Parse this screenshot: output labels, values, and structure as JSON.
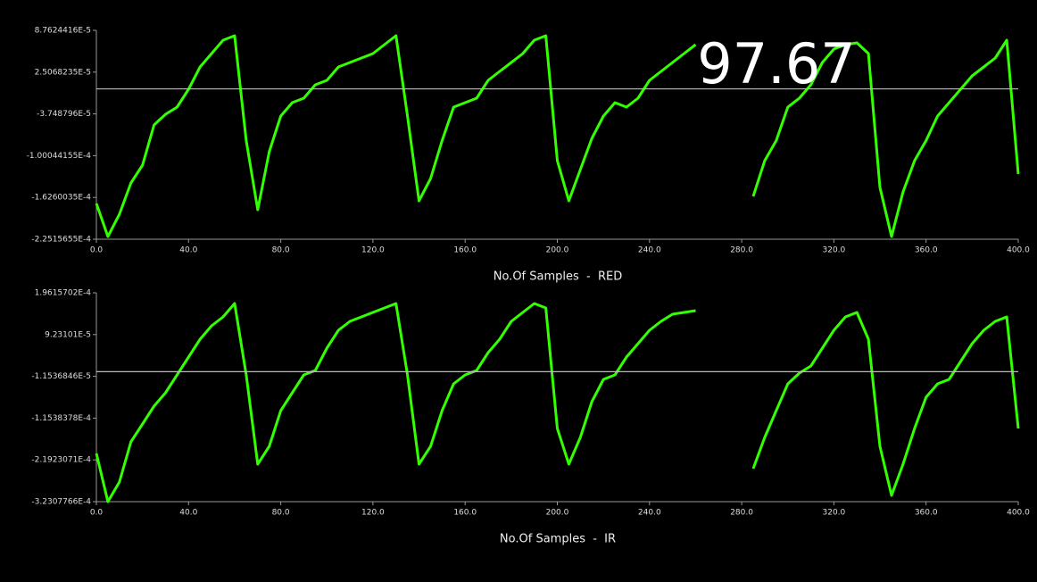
{
  "readout": 97.67,
  "chart_data": [
    {
      "type": "line",
      "xlabel": "No.Of Samples  -  RED",
      "x": [
        0,
        5,
        10,
        15,
        20,
        25,
        30,
        35,
        40,
        45,
        50,
        55,
        60,
        65,
        70,
        75,
        80,
        85,
        90,
        95,
        100,
        105,
        110,
        115,
        120,
        125,
        130,
        135,
        140,
        145,
        150,
        155,
        160,
        165,
        170,
        175,
        180,
        185,
        190,
        195,
        200,
        205,
        210,
        215,
        220,
        225,
        230,
        235,
        240,
        245,
        250,
        255,
        260,
        265,
        270,
        275,
        280,
        285,
        290,
        295,
        300,
        305,
        310,
        315,
        320,
        325,
        330,
        335,
        340,
        345,
        350,
        355,
        360,
        365,
        370,
        375,
        380,
        385,
        390,
        395,
        400
      ],
      "series": [
        {
          "color": "#33ff00",
          "values": [
            -0.0001717,
            -0.0002211,
            -0.0001877,
            -0.0001409,
            -0.0001142,
            -5.41e-05,
            -3.8e-05,
            -2.73e-05,
            -6e-07,
            3.28e-05,
            5.29e-05,
            7.29e-05,
            7.96e-05,
            -7.74e-05,
            -0.000181,
            -9.42e-05,
            -4.07e-05,
            -2.06e-05,
            -1.4e-05,
            6.1e-06,
            1.28e-05,
            3.28e-05,
            3.95e-05,
            4.62e-05,
            5.29e-05,
            6.62e-05,
            7.96e-05,
            -4.07e-05,
            -0.0001677,
            -0.0001343,
            -7.74e-05,
            -2.73e-05,
            -2.06e-05,
            -1.4e-05,
            1.28e-05,
            2.61e-05,
            3.95e-05,
            5.29e-05,
            7.29e-05,
            7.96e-05,
            -0.0001075,
            -0.0001677,
            -0.0001209,
            -7.41e-05,
            -4.07e-05,
            -2.06e-05,
            -2.73e-05,
            -1.4e-05,
            1.28e-05,
            2.61e-05,
            3.95e-05,
            5.29e-05,
            6.62e-05,
            null,
            null,
            null,
            null,
            -0.000161,
            -0.0001075,
            -7.74e-05,
            -2.73e-05,
            -1.4e-05,
            6.1e-06,
            3.95e-05,
            5.96e-05,
            6.62e-05,
            6.89e-05,
            5.29e-05,
            -0.0001476,
            -0.0002211,
            -0.0001543,
            -0.0001075,
            -7.74e-05,
            -4.07e-05,
            -2.06e-05,
            -6e-07,
            1.95e-05,
            3.28e-05,
            4.62e-05,
            7.29e-05,
            -0.0001276
          ]
        }
      ],
      "hline": 0,
      "xlim": [
        0,
        400
      ],
      "xticks": [
        {
          "value": 0,
          "label": "0.0"
        },
        {
          "value": 40,
          "label": "40.0"
        },
        {
          "value": 80,
          "label": "80.0"
        },
        {
          "value": 120,
          "label": "120.0"
        },
        {
          "value": 160,
          "label": "160.0"
        },
        {
          "value": 200,
          "label": "200.0"
        },
        {
          "value": 240,
          "label": "240.0"
        },
        {
          "value": 280,
          "label": "280.0"
        },
        {
          "value": 320,
          "label": "320.0"
        },
        {
          "value": 360,
          "label": "360.0"
        },
        {
          "value": 400,
          "label": "400.0"
        }
      ],
      "ylim": [
        -0.00022515655,
        8.7624416e-05
      ],
      "yticks": [
        {
          "value": 8.7624416e-05,
          "label": "8.7624416E-5"
        },
        {
          "value": 2.5068235e-05,
          "label": "2.5068235E-5"
        },
        {
          "value": -3.748796e-05,
          "label": "-3.748796E-5"
        },
        {
          "value": -0.000100044155,
          "label": "-1.00044155E-4"
        },
        {
          "value": -0.00016260035,
          "label": "-1.6260035E-4"
        },
        {
          "value": -0.00022515655,
          "label": "-2.2515655E-4"
        }
      ]
    },
    {
      "type": "line",
      "xlabel": "No.Of Samples  -  IR",
      "x": [
        0,
        5,
        10,
        15,
        20,
        25,
        30,
        35,
        40,
        45,
        50,
        55,
        60,
        65,
        70,
        75,
        80,
        85,
        90,
        95,
        100,
        105,
        110,
        115,
        120,
        125,
        130,
        135,
        140,
        145,
        150,
        155,
        160,
        165,
        170,
        175,
        180,
        185,
        190,
        195,
        200,
        205,
        210,
        215,
        220,
        225,
        230,
        235,
        240,
        245,
        250,
        255,
        260,
        265,
        270,
        275,
        280,
        285,
        290,
        295,
        300,
        305,
        310,
        315,
        320,
        325,
        330,
        335,
        340,
        345,
        350,
        355,
        360,
        365,
        370,
        375,
        380,
        385,
        390,
        395,
        400
      ],
      "series": [
        {
          "color": "#33ff00",
          "values": [
            -0.0002032,
            -0.0003231,
            -0.0002743,
            -0.0001744,
            -0.00013,
            -8.56e-05,
            -5.24e-05,
            -8e-06,
            3.64e-05,
            8.08e-05,
            0.0001141,
            0.0001363,
            0.0001695,
            -8e-06,
            -0.0002299,
            -0.0001855,
            -9.67e-05,
            -5.24e-05,
            -8e-06,
            3.1e-06,
            5.86e-05,
            0.000103,
            0.0001252,
            0.0001363,
            0.0001474,
            0.0001584,
            0.0001695,
            -8e-06,
            -0.0002299,
            -0.0001855,
            -9.67e-05,
            -3.02e-05,
            -8e-06,
            3.1e-06,
            4.75e-05,
            8.08e-05,
            0.0001252,
            0.0001474,
            0.0001695,
            0.0001584,
            -0.0001411,
            -0.0002299,
            -0.0001633,
            -7.45e-05,
            -1.91e-05,
            -8e-06,
            3.64e-05,
            6.97e-05,
            0.000103,
            0.0001252,
            0.0001429,
            0.0001474,
            0.0001518,
            null,
            null,
            null,
            null,
            -0.000241,
            -0.0001633,
            -9.67e-05,
            -3.02e-05,
            -3.5e-06,
            1.42e-05,
            5.86e-05,
            0.000103,
            0.0001363,
            0.0001474,
            8.08e-05,
            -0.0001855,
            -0.0003075,
            -0.0002299,
            -0.0001411,
            -6.35e-05,
            -3.02e-05,
            -1.91e-05,
            2.53e-05,
            6.97e-05,
            0.000103,
            0.0001252,
            0.0001363,
            -0.0001411
          ]
        }
      ],
      "hline": 0,
      "xlim": [
        0,
        400
      ],
      "xticks": [
        {
          "value": 0,
          "label": "0.0"
        },
        {
          "value": 40,
          "label": "40.0"
        },
        {
          "value": 80,
          "label": "80.0"
        },
        {
          "value": 120,
          "label": "120.0"
        },
        {
          "value": 160,
          "label": "160.0"
        },
        {
          "value": 200,
          "label": "200.0"
        },
        {
          "value": 240,
          "label": "240.0"
        },
        {
          "value": 280,
          "label": "280.0"
        },
        {
          "value": 320,
          "label": "320.0"
        },
        {
          "value": 360,
          "label": "360.0"
        },
        {
          "value": 400,
          "label": "400.0"
        }
      ],
      "ylim": [
        -0.00032307766,
        0.00019615702
      ],
      "yticks": [
        {
          "value": 0.00019615702,
          "label": "1.9615702E-4"
        },
        {
          "value": 9.23101e-05,
          "label": "9.23101E-5"
        },
        {
          "value": -1.1536846e-05,
          "label": "-1.1536846E-5"
        },
        {
          "value": -0.00011538378,
          "label": "-1.1538378E-4"
        },
        {
          "value": -0.00021923071,
          "label": "-2.1923071E-4"
        },
        {
          "value": -0.00032307766,
          "label": "-3.2307766E-4"
        }
      ]
    }
  ]
}
